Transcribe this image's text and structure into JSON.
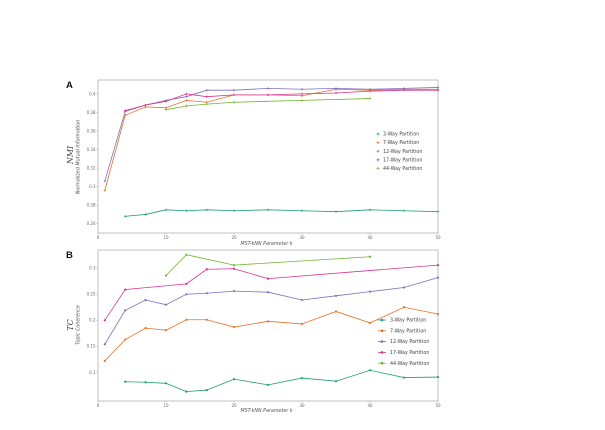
{
  "chart_data": [
    {
      "type": "line",
      "panel_label": "A",
      "ylabel_main": "NMI",
      "ylabel": "Normalized Mutual Information",
      "xlabel": "MST-kNN Parameter k",
      "xlim": [
        0,
        50
      ],
      "ylim": [
        0.25,
        0.415
      ],
      "xticks": [
        0,
        10,
        20,
        30,
        40,
        50
      ],
      "yticks": [
        {
          "v": 0.26,
          "label": "0.26"
        },
        {
          "v": 0.28,
          "label": "0.28"
        },
        {
          "v": 0.3,
          "label": "0.3"
        },
        {
          "v": 0.32,
          "label": "0.32"
        },
        {
          "v": 0.34,
          "label": "0.34"
        },
        {
          "v": 0.36,
          "label": "0.36"
        },
        {
          "v": 0.38,
          "label": "0.38"
        },
        {
          "v": 0.4,
          "label": "0.4"
        }
      ],
      "legend_position": "right",
      "series": [
        {
          "name": "3-Way Partition",
          "color": "#1f9e77",
          "x": [
            4,
            7,
            10,
            13,
            16,
            20,
            25,
            30,
            35,
            40,
            45,
            50
          ],
          "y": [
            0.268,
            0.27,
            0.275,
            0.274,
            0.275,
            0.274,
            0.275,
            0.274,
            0.273,
            0.275,
            0.274,
            0.273
          ]
        },
        {
          "name": "7-Way Partition",
          "color": "#e8702a",
          "x": [
            1,
            4,
            7,
            10,
            13,
            16,
            20,
            25,
            30,
            35,
            40,
            45,
            50
          ],
          "y": [
            0.296,
            0.377,
            0.386,
            0.385,
            0.393,
            0.391,
            0.399,
            0.399,
            0.398,
            0.405,
            0.404,
            0.405,
            0.405
          ]
        },
        {
          "name": "12-Way Partition",
          "color": "#7e6fbf",
          "x": [
            1,
            4,
            7,
            10,
            13,
            16,
            20,
            25,
            30,
            35,
            40,
            45,
            50
          ],
          "y": [
            0.306,
            0.381,
            0.388,
            0.393,
            0.397,
            0.404,
            0.404,
            0.406,
            0.405,
            0.406,
            0.405,
            0.406,
            0.407
          ]
        },
        {
          "name": "17-Way Partition",
          "color": "#d6348a",
          "x": [
            4,
            7,
            10,
            13,
            16,
            20,
            25,
            30,
            35,
            40,
            45,
            50
          ],
          "y": [
            0.382,
            0.388,
            0.392,
            0.4,
            0.397,
            0.399,
            0.399,
            0.4,
            0.401,
            0.403,
            0.404,
            0.404
          ]
        },
        {
          "name": "44-Way Partition",
          "color": "#6fb52c",
          "x": [
            10,
            13,
            16,
            20,
            30,
            40
          ],
          "y": [
            0.383,
            0.387,
            0.389,
            0.391,
            0.393,
            0.395
          ]
        }
      ]
    },
    {
      "type": "line",
      "panel_label": "B",
      "ylabel_main": "TC",
      "ylabel": "Topic Coherence",
      "xlabel": "MST-kNN Parameter k",
      "xlim": [
        0,
        50
      ],
      "ylim": [
        0.045,
        0.335
      ],
      "xticks": [
        0,
        10,
        20,
        30,
        40,
        50
      ],
      "yticks": [
        {
          "v": 0.1,
          "label": "0.1"
        },
        {
          "v": 0.15,
          "label": "0.15"
        },
        {
          "v": 0.2,
          "label": "0.2"
        },
        {
          "v": 0.25,
          "label": "0.25"
        },
        {
          "v": 0.3,
          "label": "0.3"
        }
      ],
      "legend_position": "right",
      "series": [
        {
          "name": "3-Way Partition",
          "color": "#1f9e77",
          "x": [
            4,
            7,
            10,
            13,
            16,
            20,
            25,
            30,
            35,
            40,
            45,
            50
          ],
          "y": [
            0.082,
            0.081,
            0.079,
            0.063,
            0.066,
            0.087,
            0.076,
            0.089,
            0.083,
            0.104,
            0.09,
            0.091
          ]
        },
        {
          "name": "7-Way Partition",
          "color": "#e8702a",
          "x": [
            1,
            4,
            7,
            10,
            13,
            16,
            20,
            25,
            30,
            35,
            40,
            45,
            50
          ],
          "y": [
            0.122,
            0.163,
            0.185,
            0.181,
            0.201,
            0.201,
            0.187,
            0.198,
            0.193,
            0.217,
            0.195,
            0.225,
            0.212
          ]
        },
        {
          "name": "12-Way Partition",
          "color": "#7e6fbf",
          "x": [
            1,
            4,
            7,
            10,
            13,
            16,
            20,
            25,
            30,
            35,
            40,
            45,
            50
          ],
          "y": [
            0.154,
            0.219,
            0.239,
            0.23,
            0.25,
            0.252,
            0.256,
            0.254,
            0.239,
            0.247,
            0.255,
            0.263,
            0.282
          ]
        },
        {
          "name": "17-Way Partition",
          "color": "#d6348a",
          "x": [
            1,
            4,
            13,
            16,
            20,
            25,
            50
          ],
          "y": [
            0.2,
            0.259,
            0.27,
            0.298,
            0.299,
            0.28,
            0.306
          ]
        },
        {
          "name": "44-Way Partition",
          "color": "#6fb52c",
          "x": [
            10,
            13,
            20,
            40
          ],
          "y": [
            0.286,
            0.326,
            0.306,
            0.322
          ]
        }
      ]
    }
  ]
}
